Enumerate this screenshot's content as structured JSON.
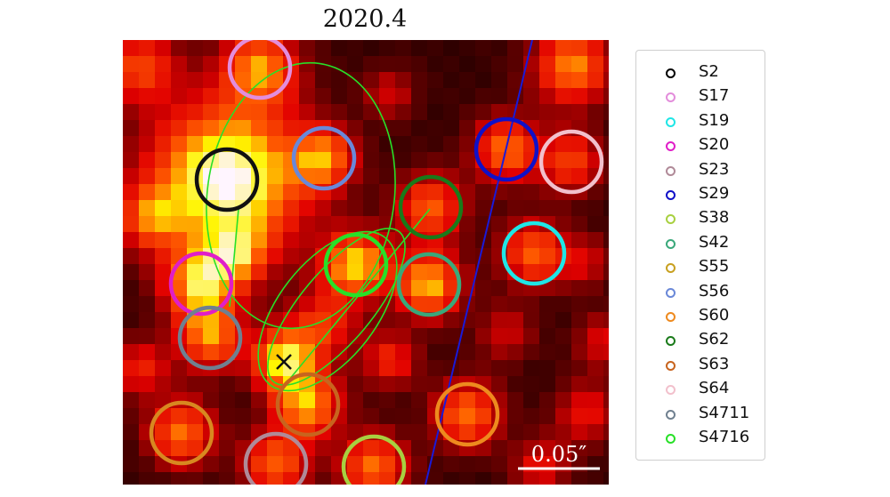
{
  "title": "2020.4",
  "scale_bar_label": "0.05″",
  "legend": [
    {
      "label": "S2",
      "color": "#000000"
    },
    {
      "label": "S17",
      "color": "#e38ddb"
    },
    {
      "label": "S19",
      "color": "#1fe6e6"
    },
    {
      "label": "S20",
      "color": "#e01ec8"
    },
    {
      "label": "S23",
      "color": "#b08a98"
    },
    {
      "label": "S29",
      "color": "#1010c8"
    },
    {
      "label": "S38",
      "color": "#a8d040"
    },
    {
      "label": "S42",
      "color": "#3aa87a"
    },
    {
      "label": "S55",
      "color": "#c8a020"
    },
    {
      "label": "S56",
      "color": "#6a88d8"
    },
    {
      "label": "S60",
      "color": "#ee8a1e"
    },
    {
      "label": "S62",
      "color": "#1a7a1a"
    },
    {
      "label": "S63",
      "color": "#c8641e"
    },
    {
      "label": "S64",
      "color": "#f2c0cc"
    },
    {
      "label": "S4711",
      "color": "#708090"
    },
    {
      "label": "S4716",
      "color": "#28e028"
    }
  ]
}
